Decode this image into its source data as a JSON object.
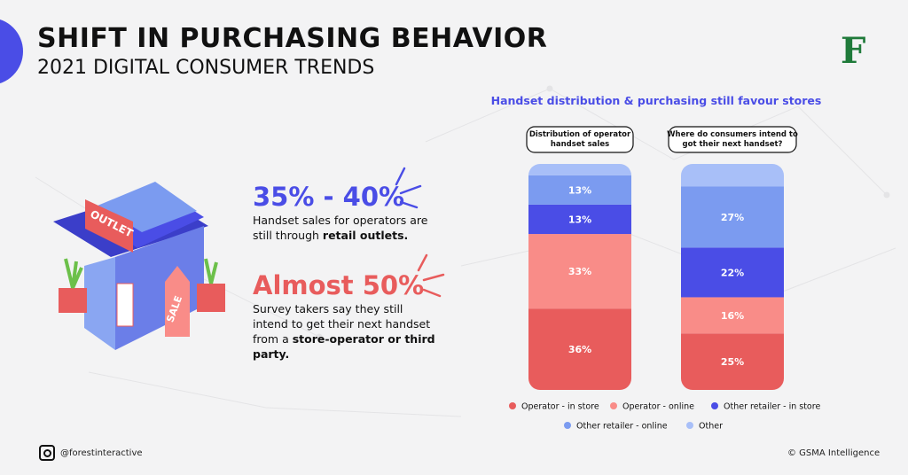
{
  "header": {
    "title": "SHIFT IN PURCHASING BEHAVIOR",
    "subtitle": "2021 DIGITAL CONSUMER TRENDS",
    "logo": "F"
  },
  "illustration": {
    "sign": "OUTLET",
    "tag": "SALE"
  },
  "stats": [
    {
      "headline": "35% - 40%",
      "text": [
        "Handset sales for operators are still through ",
        "retail outlets."
      ]
    },
    {
      "headline": "Almost 50%",
      "text": [
        "Survey takers say they still intend to get their next handset from a ",
        "store-operator or third party."
      ]
    }
  ],
  "chart_data": {
    "type": "bar",
    "stacked": true,
    "title": "Handset distribution & purchasing still favour stores",
    "categories": [
      "Distribution of operator handset sales",
      "Where do consumers intend to got their next handset?"
    ],
    "ylim": [
      0,
      100
    ],
    "series": [
      {
        "name": "Operator - in store",
        "color": "#e85c5c",
        "values": [
          36,
          25
        ],
        "value_labels": [
          "36%",
          "25%"
        ]
      },
      {
        "name": "Operator - online",
        "color": "#f98c88",
        "values": [
          33,
          16
        ],
        "value_labels": [
          "33%",
          "16%"
        ]
      },
      {
        "name": "Other retailer - in store",
        "color": "#4a4de6",
        "values": [
          13,
          22
        ],
        "value_labels": [
          "13%",
          "22%"
        ]
      },
      {
        "name": "Other retailer - online",
        "color": "#7b9bf0",
        "values": [
          13,
          27
        ],
        "value_labels": [
          "13%",
          "27%"
        ]
      },
      {
        "name": "Other",
        "color": "#a8bff8",
        "values": [
          5,
          10
        ],
        "value_labels": [
          null,
          null
        ]
      }
    ]
  },
  "footer": {
    "handle": "@forestinteractive",
    "source": "© GSMA Intelligence"
  }
}
